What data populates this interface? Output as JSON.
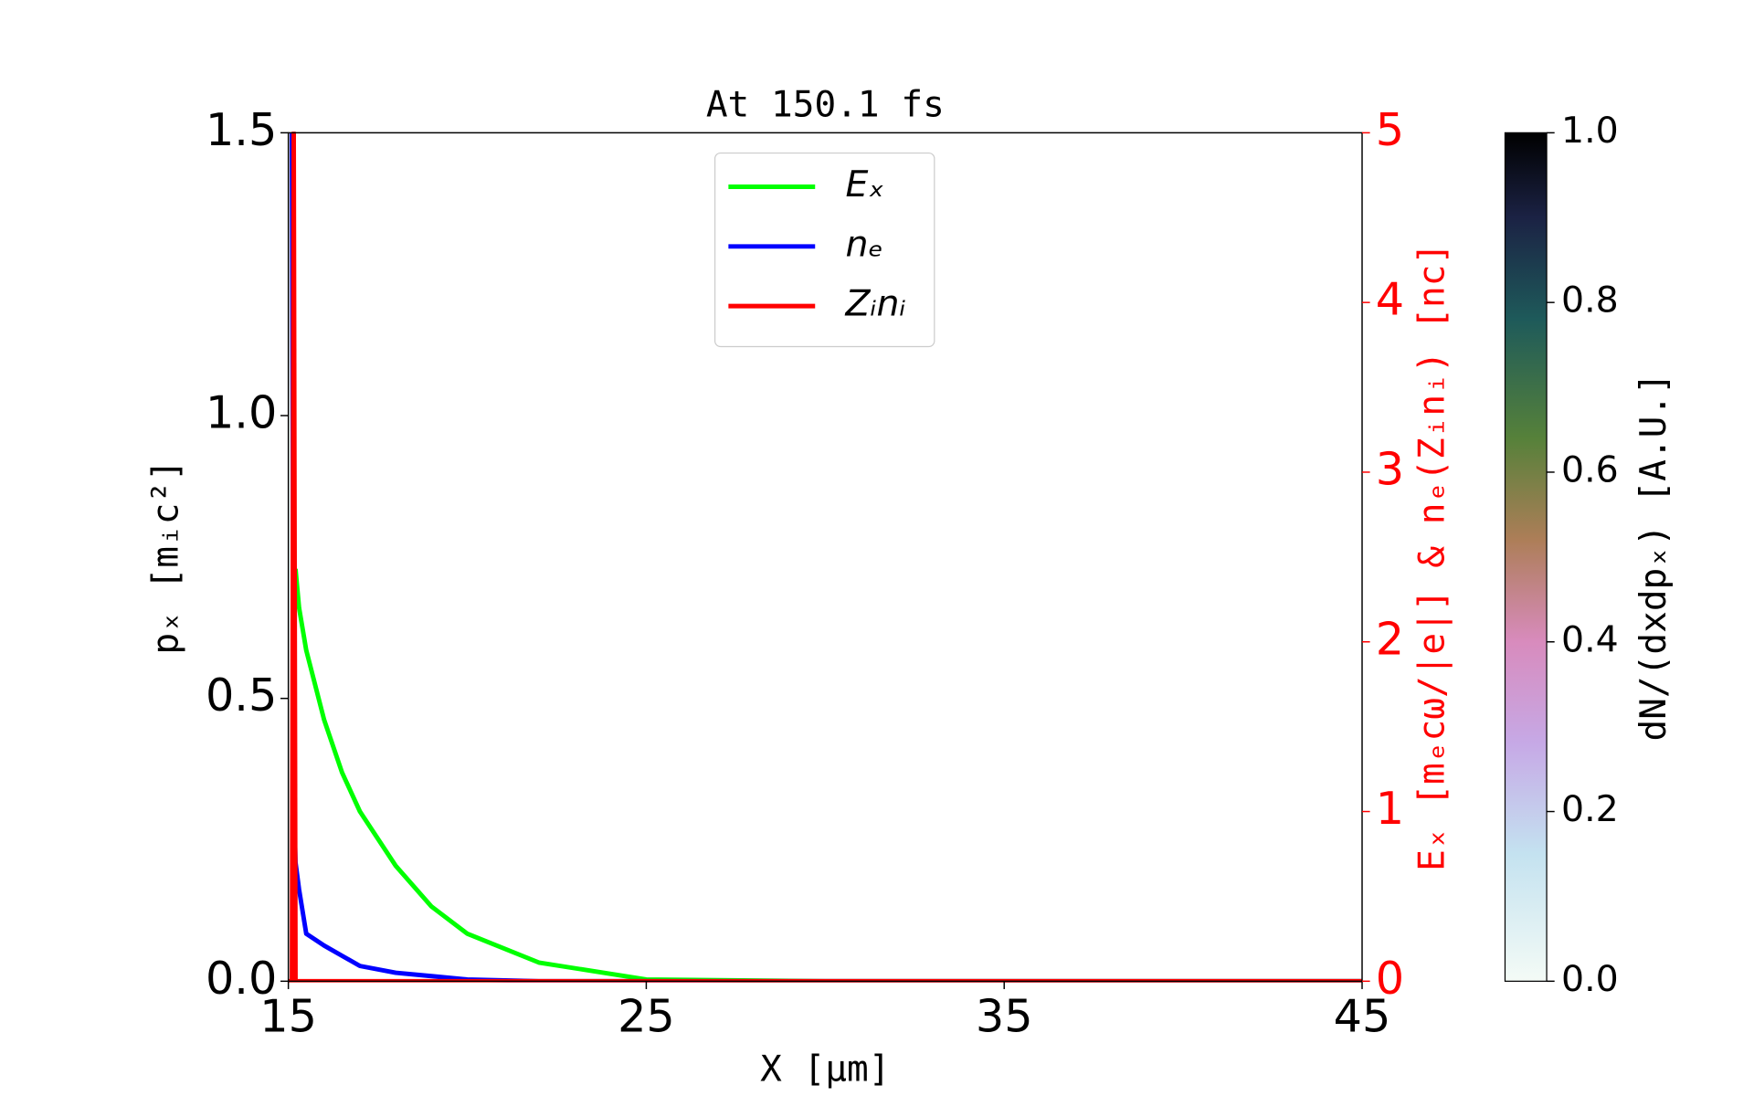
{
  "chart_data": {
    "type": "line",
    "title": "At 150.1 fs",
    "xlabel": "X [μm]",
    "ylabel": "pₓ [mᵢc²]",
    "y2label": "Eₓ [mₑcω/|e|] & nₑ(Zᵢnᵢ) [nc]",
    "x": [
      15,
      15.1,
      15.15,
      15.2,
      15.3,
      15.5,
      16,
      16.5,
      17,
      18,
      19,
      20,
      22,
      25,
      30,
      35,
      45
    ],
    "series": [
      {
        "name": "Eₓ",
        "color": "#00ff00",
        "axis": "y2",
        "values": [
          null,
          null,
          null,
          2.43,
          2.2,
          1.95,
          1.54,
          1.23,
          1.0,
          0.68,
          0.44,
          0.28,
          0.11,
          0.01,
          0,
          0,
          0
        ]
      },
      {
        "name": "nₑ",
        "color": "#0000ff",
        "axis": "y2",
        "values": [
          null,
          5,
          1.1,
          0.7,
          0.54,
          0.28,
          0.21,
          0.15,
          0.09,
          0.05,
          0.03,
          0.01,
          0,
          0,
          0,
          0,
          0
        ]
      },
      {
        "name": "Zᵢnᵢ",
        "color": "#ff0000",
        "axis": "y2",
        "values": [
          0,
          0,
          5,
          0,
          0,
          0,
          0,
          0,
          0,
          0,
          0,
          0,
          0,
          0,
          0,
          0,
          0
        ]
      }
    ],
    "xlim": [
      15,
      45
    ],
    "xticks": [
      15,
      25,
      35,
      45
    ],
    "ylim": [
      0,
      1.5
    ],
    "yticks": [
      {
        "value": 0,
        "label": "0.0"
      },
      0.5,
      {
        "value": 1,
        "label": "1.0"
      },
      1.5
    ],
    "y2lim": [
      0,
      5
    ],
    "y2ticks": [
      0,
      1,
      2,
      3,
      4,
      5
    ],
    "y2color": "#ff0000",
    "legend": "upper center",
    "colorbar": {
      "label": "dN/(dxdpₓ) [A.U.]",
      "lim": [
        0,
        1
      ],
      "ticks": [
        {
          "value": 0,
          "label": "0.0"
        },
        {
          "value": 0.2,
          "label": "0.2"
        },
        {
          "value": 0.4,
          "label": "0.4"
        },
        {
          "value": 0.6,
          "label": "0.6"
        },
        {
          "value": 0.8,
          "label": "0.8"
        },
        {
          "value": 1,
          "label": "1.0"
        }
      ]
    }
  }
}
